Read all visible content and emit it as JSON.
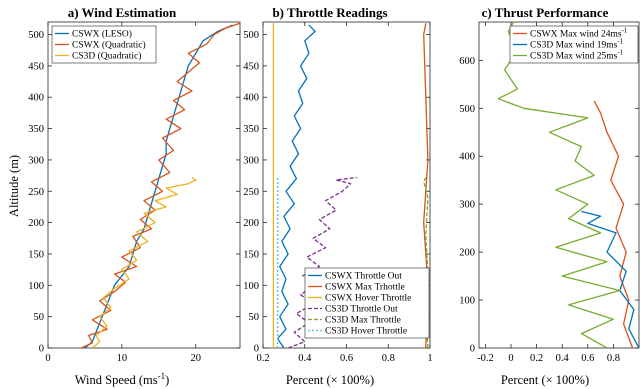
{
  "chart_data": [
    {
      "type": "line",
      "title": "a) Wind Estimation",
      "xlabel": "Wind Speed (ms",
      "xlabel_sup": "-1",
      "xlabel_end": ")",
      "ylabel": "Altitude (m)",
      "xlim": [
        0,
        26
      ],
      "ylim": [
        0,
        520
      ],
      "xticks": [
        0,
        10,
        20
      ],
      "yticks": [
        0,
        50,
        100,
        150,
        200,
        250,
        300,
        350,
        400,
        450,
        500
      ],
      "legend_position": "top-left",
      "series": [
        {
          "name": "CSWX (LESO)",
          "color": "#0072BD",
          "dash": "",
          "points": [
            [
              5,
              0
            ],
            [
              6,
              10
            ],
            [
              6.5,
              25
            ],
            [
              7,
              40
            ],
            [
              7.5,
              55
            ],
            [
              8,
              70
            ],
            [
              8.5,
              85
            ],
            [
              9,
              100
            ],
            [
              10,
              115
            ],
            [
              11,
              130
            ],
            [
              11.5,
              150
            ],
            [
              12,
              170
            ],
            [
              13,
              190
            ],
            [
              13.5,
              210
            ],
            [
              14,
              230
            ],
            [
              14.5,
              250
            ],
            [
              15,
              270
            ],
            [
              15.5,
              290
            ],
            [
              16,
              310
            ],
            [
              16,
              330
            ],
            [
              16.5,
              350
            ],
            [
              17,
              370
            ],
            [
              17.5,
              390
            ],
            [
              18,
              410
            ],
            [
              18.5,
              430
            ],
            [
              19,
              450
            ],
            [
              20,
              470
            ],
            [
              21,
              490
            ],
            [
              23,
              505
            ],
            [
              25,
              515
            ]
          ]
        },
        {
          "name": "CSWX (Quadratic)",
          "color": "#D95319",
          "dash": "",
          "points": [
            [
              4.5,
              0
            ],
            [
              6,
              8
            ],
            [
              5.5,
              20
            ],
            [
              8,
              30
            ],
            [
              6,
              45
            ],
            [
              8.5,
              60
            ],
            [
              7,
              75
            ],
            [
              9,
              90
            ],
            [
              10.5,
              105
            ],
            [
              9,
              118
            ],
            [
              12,
              130
            ],
            [
              10,
              145
            ],
            [
              12.5,
              160
            ],
            [
              11.5,
              178
            ],
            [
              14,
              190
            ],
            [
              12.5,
              205
            ],
            [
              14.5,
              220
            ],
            [
              13,
              235
            ],
            [
              15.5,
              250
            ],
            [
              14,
              265
            ],
            [
              16.5,
              280
            ],
            [
              15,
              300
            ],
            [
              17,
              315
            ],
            [
              15.5,
              335
            ],
            [
              18,
              350
            ],
            [
              16,
              365
            ],
            [
              18.5,
              380
            ],
            [
              17,
              395
            ],
            [
              19.5,
              410
            ],
            [
              17.5,
              425
            ],
            [
              19,
              440
            ],
            [
              20.5,
              455
            ],
            [
              19,
              470
            ],
            [
              21.5,
              485
            ],
            [
              22.5,
              500
            ],
            [
              24,
              510
            ],
            [
              26,
              518
            ]
          ]
        },
        {
          "name": "CS3D (Quadratic)",
          "color": "#EDB120",
          "dash": "",
          "points": [
            [
              6,
              0
            ],
            [
              7,
              10
            ],
            [
              6.5,
              20
            ],
            [
              8,
              35
            ],
            [
              7,
              50
            ],
            [
              8.5,
              65
            ],
            [
              7.5,
              80
            ],
            [
              9,
              95
            ],
            [
              11,
              110
            ],
            [
              10,
              125
            ],
            [
              12,
              140
            ],
            [
              11,
              155
            ],
            [
              13.5,
              170
            ],
            [
              12,
              185
            ],
            [
              14.5,
              200
            ],
            [
              13,
              215
            ],
            [
              16,
              225
            ],
            [
              14.5,
              235
            ],
            [
              17.5,
              245
            ],
            [
              16,
              255
            ],
            [
              19,
              262
            ],
            [
              20,
              268
            ],
            [
              19.5,
              272
            ]
          ]
        }
      ]
    },
    {
      "type": "line",
      "title": "b) Throttle Readings",
      "xlabel": "Percent (× 100%)",
      "xlim": [
        0.2,
        1
      ],
      "ylim": [
        0,
        520
      ],
      "xticks": [
        0.2,
        0.4,
        0.6,
        0.8,
        1
      ],
      "yticks": [
        0,
        50,
        100,
        150,
        200,
        250,
        300,
        350,
        400,
        450,
        500
      ],
      "legend_position": "bottom-right",
      "series": [
        {
          "name": "CSWX Throttle Out",
          "color": "#0072BD",
          "dash": "",
          "points": [
            [
              0.3,
              0
            ],
            [
              0.27,
              15
            ],
            [
              0.31,
              30
            ],
            [
              0.28,
              50
            ],
            [
              0.32,
              70
            ],
            [
              0.29,
              90
            ],
            [
              0.31,
              110
            ],
            [
              0.28,
              130
            ],
            [
              0.32,
              150
            ],
            [
              0.29,
              170
            ],
            [
              0.33,
              190
            ],
            [
              0.3,
              210
            ],
            [
              0.35,
              230
            ],
            [
              0.31,
              250
            ],
            [
              0.36,
              270
            ],
            [
              0.33,
              290
            ],
            [
              0.37,
              310
            ],
            [
              0.34,
              330
            ],
            [
              0.38,
              350
            ],
            [
              0.35,
              370
            ],
            [
              0.39,
              390
            ],
            [
              0.37,
              410
            ],
            [
              0.41,
              430
            ],
            [
              0.38,
              450
            ],
            [
              0.42,
              470
            ],
            [
              0.4,
              490
            ],
            [
              0.45,
              505
            ],
            [
              0.42,
              515
            ]
          ]
        },
        {
          "name": "CSWX Max Trhottle",
          "color": "#D95319",
          "dash": "",
          "points": [
            [
              0.98,
              0
            ],
            [
              0.99,
              100
            ],
            [
              0.97,
              200
            ],
            [
              0.99,
              300
            ],
            [
              0.98,
              400
            ],
            [
              0.97,
              500
            ],
            [
              0.98,
              518
            ]
          ]
        },
        {
          "name": "CSWX Hover Throttle",
          "color": "#EDB120",
          "dash": "",
          "points": [
            [
              0.25,
              0
            ],
            [
              0.25,
              518
            ]
          ]
        },
        {
          "name": "CS3D Throttle Out",
          "color": "#7E2F8E",
          "dash": "4,2",
          "points": [
            [
              0.32,
              0
            ],
            [
              0.4,
              10
            ],
            [
              0.35,
              25
            ],
            [
              0.42,
              40
            ],
            [
              0.36,
              55
            ],
            [
              0.44,
              70
            ],
            [
              0.38,
              85
            ],
            [
              0.45,
              100
            ],
            [
              0.39,
              115
            ],
            [
              0.47,
              130
            ],
            [
              0.41,
              145
            ],
            [
              0.5,
              160
            ],
            [
              0.44,
              175
            ],
            [
              0.52,
              190
            ],
            [
              0.47,
              205
            ],
            [
              0.55,
              220
            ],
            [
              0.5,
              235
            ],
            [
              0.58,
              250
            ],
            [
              0.62,
              262
            ],
            [
              0.55,
              268
            ],
            [
              0.65,
              272
            ]
          ]
        },
        {
          "name": "CS3D Max Throttle",
          "color": "#77AC30",
          "dash": "4,2",
          "points": [
            [
              0.99,
              0
            ],
            [
              0.98,
              60
            ],
            [
              0.99,
              120
            ],
            [
              0.98,
              180
            ],
            [
              0.99,
              240
            ],
            [
              0.97,
              265
            ],
            [
              0.98,
              272
            ]
          ]
        },
        {
          "name": "CS3D Hover Throttle",
          "color": "#4DBEEE",
          "dash": "2,2",
          "points": [
            [
              0.27,
              0
            ],
            [
              0.27,
              272
            ]
          ]
        }
      ]
    },
    {
      "type": "line",
      "title": "c) Thrust Performance",
      "xlabel": "Percent (× 100%)",
      "xlim": [
        -0.25,
        1
      ],
      "ylim": [
        0,
        680
      ],
      "xticks": [
        -0.2,
        0,
        0.2,
        0.4,
        0.6,
        0.8
      ],
      "yticks": [
        0,
        100,
        200,
        300,
        400,
        500,
        600
      ],
      "legend_position": "top-right",
      "series": [
        {
          "name": "CSWX Max wind 24ms",
          "name_sup": "-1",
          "color": "#D95319",
          "dash": "",
          "points": [
            [
              0.95,
              0
            ],
            [
              0.88,
              50
            ],
            [
              0.92,
              100
            ],
            [
              0.85,
              150
            ],
            [
              0.9,
              200
            ],
            [
              0.82,
              250
            ],
            [
              0.88,
              300
            ],
            [
              0.78,
              350
            ],
            [
              0.84,
              400
            ],
            [
              0.75,
              450
            ],
            [
              0.7,
              490
            ],
            [
              0.65,
              515
            ]
          ]
        },
        {
          "name": "CS3D Max wind 19ms",
          "name_sup": "-1",
          "color": "#0072BD",
          "dash": "",
          "points": [
            [
              1,
              0
            ],
            [
              0.92,
              40
            ],
            [
              0.96,
              80
            ],
            [
              0.85,
              120
            ],
            [
              0.9,
              160
            ],
            [
              0.75,
              200
            ],
            [
              0.82,
              240
            ],
            [
              0.6,
              260
            ],
            [
              0.7,
              275
            ],
            [
              0.55,
              285
            ]
          ]
        },
        {
          "name": "CS3D Max wind 25ms",
          "name_sup": "-1",
          "color": "#77AC30",
          "dash": "",
          "points": [
            [
              0.75,
              0
            ],
            [
              0.55,
              30
            ],
            [
              0.8,
              60
            ],
            [
              0.45,
              90
            ],
            [
              0.85,
              120
            ],
            [
              0.4,
              150
            ],
            [
              0.75,
              180
            ],
            [
              0.35,
              210
            ],
            [
              0.7,
              240
            ],
            [
              0.45,
              270
            ],
            [
              0.6,
              300
            ],
            [
              0.35,
              330
            ],
            [
              0.65,
              360
            ],
            [
              0.5,
              390
            ],
            [
              0.55,
              420
            ],
            [
              0.3,
              450
            ],
            [
              0.6,
              480
            ],
            [
              0.1,
              500
            ],
            [
              -0.1,
              520
            ],
            [
              0.05,
              540
            ],
            [
              -0.05,
              580
            ],
            [
              0.05,
              620
            ],
            [
              -0.02,
              660
            ],
            [
              0.02,
              680
            ]
          ]
        }
      ]
    }
  ]
}
